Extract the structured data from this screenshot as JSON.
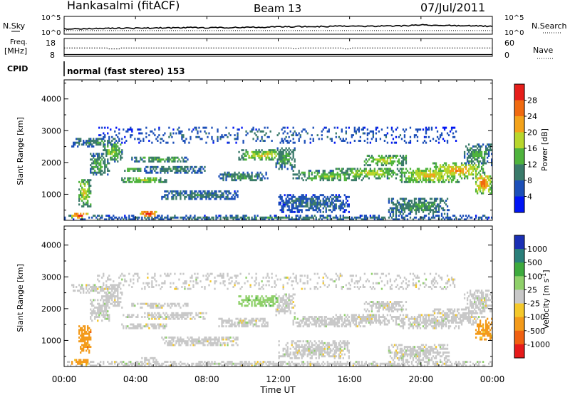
{
  "header": {
    "station": "Hankasalmi (fitACF)",
    "beam": "Beam 13",
    "date": "07/Jul/2011"
  },
  "chart_data": {
    "type": "heatmap",
    "time_axis": {
      "label": "Time UT",
      "range_hours": [
        0,
        24
      ],
      "ticks": [
        "00:00",
        "04:00",
        "08:00",
        "12:00",
        "16:00",
        "20:00",
        "00:00"
      ]
    },
    "top_panels": {
      "nsky": {
        "label": "N.Sky",
        "left_ticks": [
          "10^5",
          "10^0"
        ],
        "right_ticks": [
          "10^5",
          "10^0"
        ],
        "right_label": "N.Search",
        "nsky_trace": [
          1.4,
          1.5,
          1.5,
          1.6,
          1.6,
          1.7,
          1.7,
          1.8,
          1.7,
          1.8,
          1.9,
          1.9,
          2.0,
          2.1,
          2.1,
          2.2,
          2.2,
          2.2,
          2.3,
          2.3,
          2.6,
          2.5,
          2.4,
          2.3,
          2.2
        ],
        "nsearch_level": 0.9
      },
      "freq": {
        "label_1": "Freq.",
        "label_2": "[MHz]",
        "left_ticks": [
          "18",
          "8"
        ],
        "right_ticks": [
          "60",
          "0"
        ],
        "right_label": "Nave",
        "freq_level": 13.5,
        "nave_level": 4,
        "dips": [
          [
            2.5,
            3.1,
            12.6
          ],
          [
            12.8,
            13.1,
            12.9
          ],
          [
            15.7,
            16.0,
            12.6
          ]
        ]
      },
      "cpid": {
        "label": "CPID",
        "text": "normal (fast stereo) 153"
      }
    },
    "panels": [
      {
        "name": "power",
        "ylabel": "Slant Range [km]",
        "ylim": [
          180,
          4600
        ],
        "yticks": [
          1000,
          2000,
          3000,
          4000
        ],
        "colorbar": {
          "label": "Power [dB]",
          "ticks": [
            "4",
            "8",
            "12",
            "16",
            "20",
            "24",
            "28"
          ],
          "colors": [
            "#0015f5",
            "#1c4fb8",
            "#3a7a6a",
            "#4fb33d",
            "#b8d62c",
            "#f3a21a",
            "#f06a10",
            "#e61e1a"
          ]
        }
      },
      {
        "name": "velocity",
        "ylabel": "Slant Range [km]",
        "ylim": [
          180,
          4600
        ],
        "yticks": [
          1000,
          2000,
          3000,
          4000
        ],
        "colorbar": {
          "label": "Velocity [m s^-1]",
          "ticks": [
            "1000",
            "500",
            "100",
            "25",
            "-25",
            "-100",
            "-500",
            "-1000"
          ],
          "colors": [
            "#1a2fb4",
            "#2a7f7a",
            "#3daa3d",
            "#8fd06a",
            "#c8c8c8",
            "#f4c82a",
            "#f39a1a",
            "#f06010",
            "#e61a1a"
          ]
        }
      }
    ],
    "echo_bands": [
      {
        "t0": 0.0,
        "t1": 24.0,
        "r0": 190,
        "r1": 330,
        "p": 7,
        "v": 0
      },
      {
        "t0": 0.4,
        "t1": 1.4,
        "r0": 250,
        "r1": 420,
        "p": 24,
        "v": -2
      },
      {
        "t0": 4.2,
        "t1": 5.2,
        "r0": 300,
        "r1": 480,
        "p": 27,
        "v": 0
      },
      {
        "t0": 0.8,
        "t1": 1.5,
        "r0": 600,
        "r1": 1500,
        "p": 15,
        "v": -2
      },
      {
        "t0": 0.4,
        "t1": 3.3,
        "r0": 2500,
        "r1": 2800,
        "p": 8,
        "v": 0
      },
      {
        "t0": 2.1,
        "t1": 3.3,
        "r0": 2000,
        "r1": 2700,
        "p": 12,
        "v": 0
      },
      {
        "t0": 1.4,
        "t1": 2.6,
        "r0": 1600,
        "r1": 2300,
        "p": 10,
        "v": 0
      },
      {
        "t0": 3.2,
        "t1": 5.8,
        "r0": 1350,
        "r1": 1550,
        "p": 14,
        "v": 0
      },
      {
        "t0": 3.3,
        "t1": 4.4,
        "r0": 1700,
        "r1": 1850,
        "p": 12,
        "v": 0
      },
      {
        "t0": 3.7,
        "t1": 7.0,
        "r0": 2000,
        "r1": 2200,
        "p": 10,
        "v": 0
      },
      {
        "t0": 4.5,
        "t1": 8.0,
        "r0": 1650,
        "r1": 1900,
        "p": 8,
        "v": 0
      },
      {
        "t0": 5.4,
        "t1": 9.8,
        "r0": 800,
        "r1": 1150,
        "p": 7,
        "v": 0
      },
      {
        "t0": 8.6,
        "t1": 11.4,
        "r0": 1400,
        "r1": 1700,
        "p": 9,
        "v": 0
      },
      {
        "t0": 9.8,
        "t1": 12.6,
        "r0": 2050,
        "r1": 2400,
        "p": 15,
        "v": 1
      },
      {
        "t0": 11.8,
        "t1": 13.0,
        "r0": 1800,
        "r1": 2500,
        "p": 10,
        "v": 0
      },
      {
        "t0": 12.8,
        "t1": 17.0,
        "r0": 1400,
        "r1": 1750,
        "p": 12,
        "v": 0
      },
      {
        "t0": 15.2,
        "t1": 19.0,
        "r0": 1500,
        "r1": 1850,
        "p": 14,
        "v": 0
      },
      {
        "t0": 16.8,
        "t1": 19.2,
        "r0": 1900,
        "r1": 2250,
        "p": 14,
        "v": 0
      },
      {
        "t0": 18.8,
        "t1": 22.2,
        "r0": 1350,
        "r1": 1850,
        "p": 16,
        "v": 0
      },
      {
        "t0": 20.6,
        "t1": 23.6,
        "r0": 1500,
        "r1": 2000,
        "p": 18,
        "v": 0
      },
      {
        "t0": 22.4,
        "t1": 24.0,
        "r0": 1900,
        "r1": 2600,
        "p": 10,
        "v": 0
      },
      {
        "t0": 23.0,
        "t1": 24.0,
        "r0": 1000,
        "r1": 1700,
        "p": 20,
        "v": -2
      },
      {
        "t0": 18.2,
        "t1": 21.6,
        "r0": 350,
        "r1": 900,
        "p": 9,
        "v": 0
      },
      {
        "t0": 12.0,
        "t1": 16.0,
        "r0": 400,
        "r1": 1000,
        "p": 6,
        "v": 0
      },
      {
        "t0": 1.8,
        "t1": 22.0,
        "r0": 2600,
        "r1": 3100,
        "p": 5,
        "v": 0
      }
    ]
  }
}
